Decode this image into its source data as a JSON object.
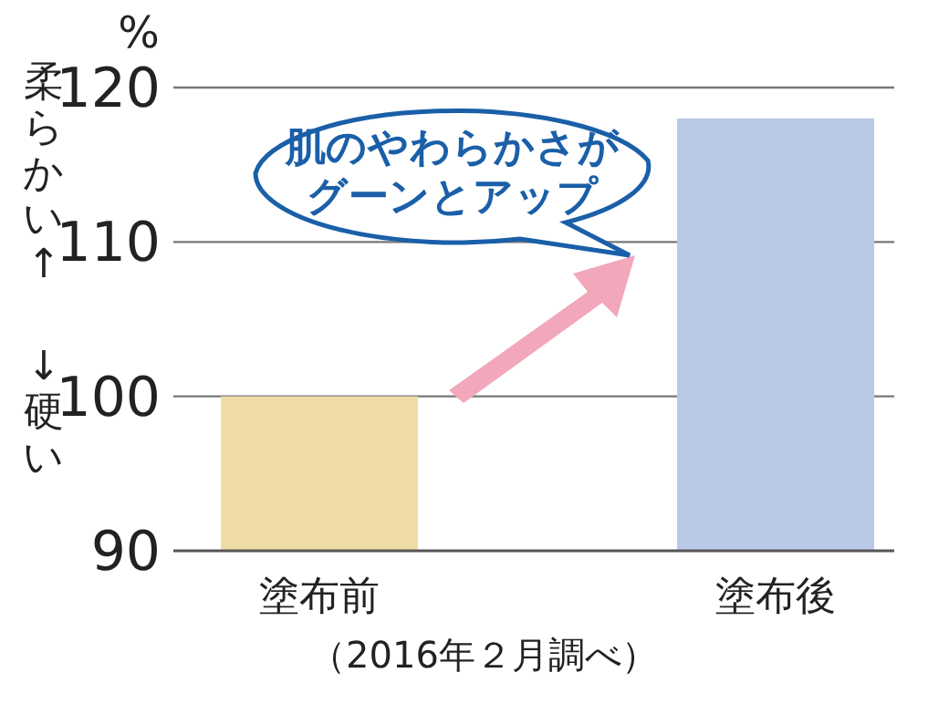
{
  "chart_data": {
    "type": "bar",
    "ylabel": "%",
    "categories": [
      "塗布前",
      "塗布後"
    ],
    "values": [
      100,
      118
    ],
    "colors": [
      "#f0dca6",
      "#b9c9e8"
    ],
    "ylim": [
      90,
      120
    ],
    "yticks": [
      90,
      100,
      110,
      120
    ],
    "grid": "y",
    "annotations": [
      "肌のやわらかさがグーンとアップ",
      "（2016年２月調べ）",
      "柔らかい↑",
      "↓硬い"
    ]
  }
}
